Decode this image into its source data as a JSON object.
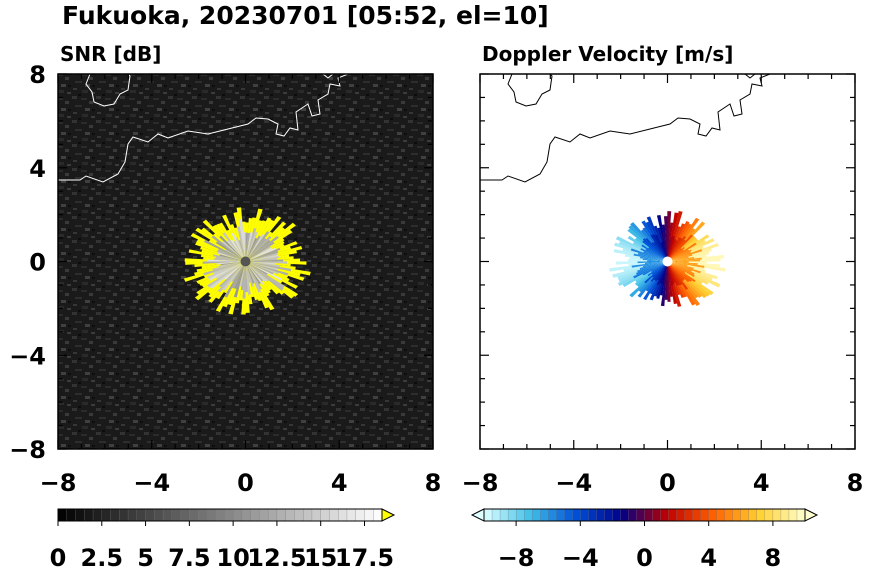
{
  "title": "Fukuoka, 20230701 [05:52, el=10]",
  "chart_data": [
    {
      "type": "heatmap",
      "title": "SNR [dB]",
      "x_ticks": [
        "−8",
        "−4",
        "0",
        "4",
        "8"
      ],
      "y_ticks": [
        "8",
        "4",
        "0",
        "−4",
        "−8"
      ],
      "xlim": [
        -8,
        8
      ],
      "ylim": [
        -8,
        8
      ],
      "colorbar": {
        "range": [
          0,
          18.5
        ],
        "labels": [
          "0",
          "2.5",
          "5",
          "7.5",
          "10",
          "12.5",
          "15",
          "17.5"
        ],
        "label_values": [
          0,
          2.5,
          5,
          7.5,
          10,
          12.5,
          15,
          17.5
        ],
        "extend": "max",
        "over_color": "#ffff00",
        "colors": [
          "#000000",
          "#ffffff"
        ]
      },
      "echo_region": {
        "x": [
          -2.3,
          2.5
        ],
        "y": [
          -1.9,
          2.0
        ]
      }
    },
    {
      "type": "heatmap",
      "title": "Doppler Velocity [m/s]",
      "x_ticks": [
        "−8",
        "−4",
        "0",
        "4",
        "8"
      ],
      "y_ticks": [
        "8",
        "4",
        "0",
        "−4",
        "−8"
      ],
      "xlim": [
        -8,
        8
      ],
      "ylim": [
        -8,
        8
      ],
      "colorbar": {
        "range": [
          -10,
          10
        ],
        "labels": [
          "−8",
          "−4",
          "0",
          "4",
          "8"
        ],
        "label_values": [
          -8,
          -4,
          0,
          4,
          8
        ],
        "extend": "both",
        "colors": [
          "#e0ffff",
          "#40c0e8",
          "#0050d8",
          "#000088",
          "#c00000",
          "#ff6000",
          "#ffd030",
          "#ffffd0"
        ]
      },
      "echo_region": {
        "x": [
          -2.0,
          2.2
        ],
        "y": [
          -1.9,
          1.8
        ]
      }
    }
  ]
}
